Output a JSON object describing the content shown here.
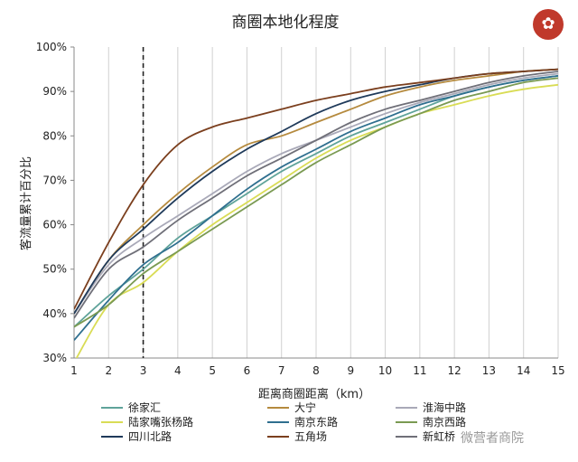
{
  "chart_data": {
    "type": "line",
    "title": "商圈本地化程度",
    "xlabel": "距离商圈距离（km）",
    "ylabel": "客流量累计百分比",
    "xlim": [
      1,
      15
    ],
    "ylim": [
      30,
      100
    ],
    "x_ticks": [
      "1",
      "2",
      "3",
      "4",
      "5",
      "6",
      "7",
      "8",
      "9",
      "10",
      "11",
      "12",
      "13",
      "14",
      "15"
    ],
    "y_ticks": [
      "30%",
      "40%",
      "50%",
      "60%",
      "70%",
      "80%",
      "90%",
      "100%"
    ],
    "grid": "vertical",
    "reference_line_x": 3,
    "legend_position": "bottom",
    "x": [
      1,
      2,
      3,
      4,
      5,
      6,
      7,
      8,
      9,
      10,
      11,
      12,
      13,
      14,
      15
    ],
    "series": [
      {
        "name": "徐家汇",
        "color": "#5fa39a",
        "values": [
          37,
          44,
          50,
          57,
          62,
          67,
          72,
          76,
          80,
          83,
          86,
          89,
          91,
          92.5,
          93.5
        ]
      },
      {
        "name": "大宁",
        "color": "#b58a3e",
        "values": [
          40,
          52,
          60,
          67,
          73,
          78,
          80,
          83,
          86,
          89,
          91,
          92.5,
          93.5,
          94.5,
          95
        ]
      },
      {
        "name": "淮海中路",
        "color": "#a9a9b8",
        "values": [
          40,
          51,
          57,
          62,
          67,
          72,
          76,
          79,
          82,
          85,
          87.5,
          89.5,
          91.5,
          93,
          94
        ]
      },
      {
        "name": "陆家嘴张杨路",
        "color": "#d9dc55",
        "values": [
          29,
          42,
          47,
          54,
          60,
          65,
          70,
          75,
          79,
          82,
          85,
          87,
          89,
          90.5,
          91.5
        ]
      },
      {
        "name": "南京东路",
        "color": "#2f6f8f",
        "values": [
          34,
          43,
          51,
          56,
          62,
          68,
          73,
          77,
          81,
          84,
          87,
          89,
          91,
          92.5,
          93.5
        ]
      },
      {
        "name": "南京西路",
        "color": "#7a9a52",
        "values": [
          37,
          42,
          49,
          54,
          59,
          64,
          69,
          74,
          78,
          82,
          85,
          88,
          90,
          92,
          93
        ]
      },
      {
        "name": "四川北路",
        "color": "#1f3a5a",
        "values": [
          40,
          52,
          59,
          66,
          72,
          77,
          81,
          85,
          88,
          90,
          91.5,
          93,
          94,
          94.5,
          95
        ]
      },
      {
        "name": "五角场",
        "color": "#7b3f1e",
        "values": [
          41,
          56,
          69,
          78,
          82,
          84,
          86,
          88,
          89.5,
          91,
          92,
          93,
          94,
          94.5,
          95
        ]
      },
      {
        "name": "新虹桥",
        "color": "#6f6f78",
        "values": [
          39,
          50,
          55,
          61,
          66,
          71,
          75,
          79,
          83,
          86,
          88,
          90,
          92,
          93.5,
          94.5
        ]
      }
    ]
  },
  "watermark": "微营者商院"
}
